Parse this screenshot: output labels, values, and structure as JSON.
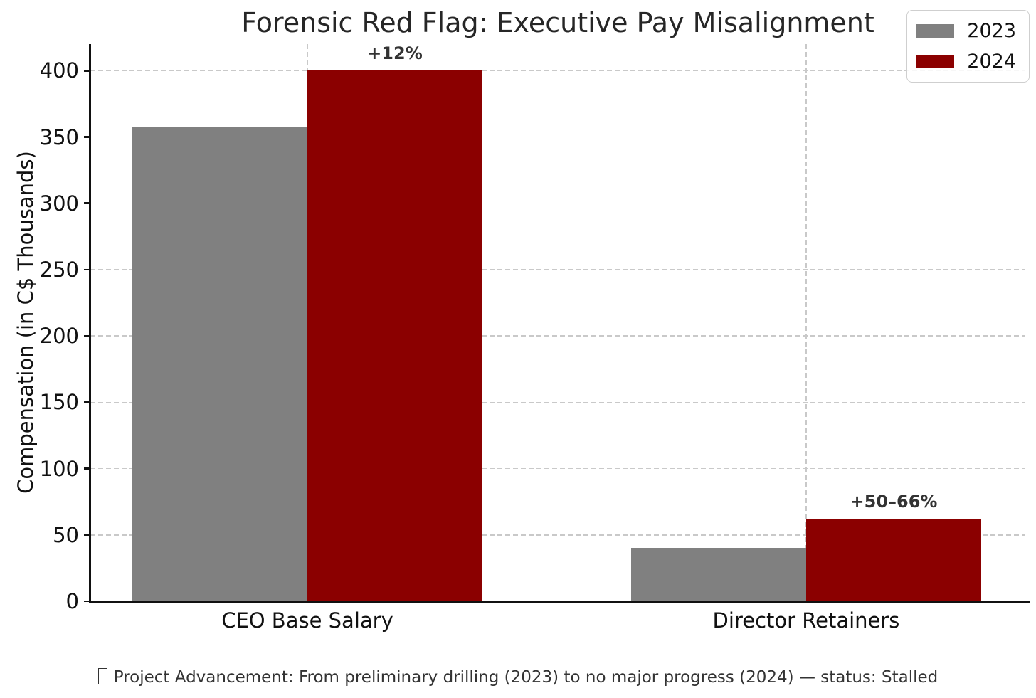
{
  "title": "Forensic Red Flag: Executive Pay Misalignment",
  "chart_data": {
    "type": "bar",
    "title": "Forensic Red Flag: Executive Pay Misalignment",
    "categories": [
      "CEO Base Salary",
      "Director Retainers"
    ],
    "series": [
      {
        "name": "2023",
        "color": "#808080",
        "values": [
          357,
          40
        ]
      },
      {
        "name": "2024",
        "color": "#8B0000",
        "values": [
          400,
          62
        ]
      }
    ],
    "annotations": [
      {
        "category_index": 0,
        "series_index": 1,
        "text": "+12%"
      },
      {
        "category_index": 1,
        "series_index": 1,
        "text": "+50–66%"
      }
    ],
    "xlabel": "",
    "ylabel": "Compensation (in C$ Thousands)",
    "ylim": [
      0,
      420
    ],
    "yticks": [
      0,
      50,
      100,
      150,
      200,
      250,
      300,
      350,
      400
    ],
    "grid": true,
    "grid_color": "#c9c9c9",
    "legend_position": "upper right"
  },
  "legend": {
    "items": [
      {
        "label": "2023",
        "color": "#808080"
      },
      {
        "label": "2024",
        "color": "#8B0000"
      }
    ]
  },
  "caption": {
    "prefix_glyph": "missing-glyph-box",
    "text": "Project Advancement: From preliminary drilling (2023) to no major progress (2024) — status: Stalled"
  }
}
